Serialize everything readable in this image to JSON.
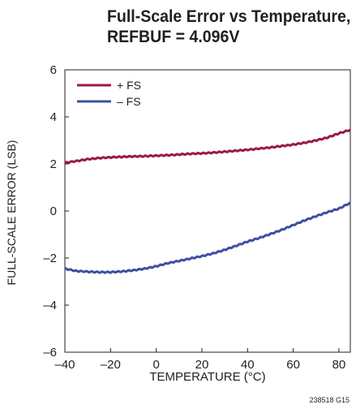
{
  "title_lines": [
    "Full-Scale Error vs Temperature,",
    "REFBUF = 4.096V"
  ],
  "figure_id": "238518 G15",
  "chart_data": {
    "type": "line",
    "title": "Full-Scale Error vs Temperature, REFBUF = 4.096V",
    "xlabel": "TEMPERATURE (°C)",
    "ylabel": "FULL-SCALE ERROR (LSB)",
    "xlim": [
      -40,
      85
    ],
    "ylim": [
      -6,
      6
    ],
    "xticks": [
      -40,
      -20,
      0,
      20,
      40,
      60,
      80
    ],
    "yticks": [
      -6,
      -4,
      -2,
      0,
      2,
      4,
      6
    ],
    "xtick_labels": [
      "–40",
      "–20",
      "0",
      "20",
      "40",
      "60",
      "80"
    ],
    "ytick_labels": [
      "–6",
      "–4",
      "–2",
      "0",
      "2",
      "4",
      "6"
    ],
    "grid": false,
    "legend_position": "top-left",
    "series": [
      {
        "name": "+ FS",
        "color": "#9b1b3c",
        "x": [
          -40,
          -35,
          -30,
          -25,
          -20,
          -15,
          -10,
          -5,
          0,
          5,
          10,
          15,
          20,
          25,
          30,
          35,
          40,
          45,
          50,
          55,
          60,
          65,
          70,
          75,
          80,
          85
        ],
        "y": [
          2.05,
          2.12,
          2.2,
          2.25,
          2.28,
          2.3,
          2.32,
          2.33,
          2.35,
          2.37,
          2.4,
          2.43,
          2.45,
          2.48,
          2.52,
          2.56,
          2.6,
          2.65,
          2.7,
          2.76,
          2.82,
          2.9,
          3.0,
          3.12,
          3.3,
          3.45
        ]
      },
      {
        "name": "– FS",
        "color": "#3d4fa3",
        "x": [
          -40,
          -35,
          -30,
          -25,
          -20,
          -15,
          -10,
          -5,
          0,
          5,
          10,
          15,
          20,
          25,
          30,
          35,
          40,
          45,
          50,
          55,
          60,
          65,
          70,
          75,
          80,
          85
        ],
        "y": [
          -2.45,
          -2.55,
          -2.58,
          -2.6,
          -2.6,
          -2.57,
          -2.52,
          -2.45,
          -2.35,
          -2.22,
          -2.12,
          -2.02,
          -1.92,
          -1.8,
          -1.65,
          -1.48,
          -1.3,
          -1.15,
          -0.98,
          -0.8,
          -0.6,
          -0.4,
          -0.22,
          -0.05,
          0.1,
          0.35
        ]
      }
    ]
  }
}
